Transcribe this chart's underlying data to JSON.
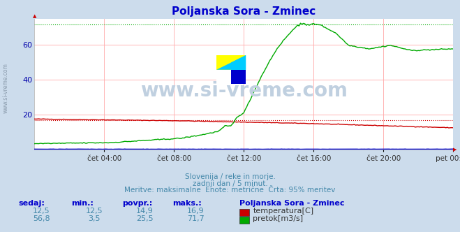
{
  "title": "Poljanska Sora - Zminec",
  "title_color": "#0000cc",
  "bg_color": "#ccdcec",
  "plot_bg_color": "#ffffff",
  "grid_color": "#ffaaaa",
  "x_labels": [
    "čet 04:00",
    "čet 08:00",
    "čet 12:00",
    "čet 16:00",
    "čet 20:00",
    "pet 00:00"
  ],
  "y_ticks": [
    20,
    40,
    60
  ],
  "y_min": 0,
  "y_max": 75,
  "temp_color": "#cc0000",
  "flow_color": "#00aa00",
  "level_color": "#0000cc",
  "temp_dashed_val": 16.9,
  "flow_dashed_val": 71.7,
  "watermark": "www.si-vreme.com",
  "watermark_color": "#c0d0e0",
  "side_watermark_color": "#8899aa",
  "subtitle1": "Slovenija / reke in morje.",
  "subtitle2": "zadnji dan / 5 minut.",
  "subtitle3": "Meritve: maksimalne  Enote: metrične  Črta: 95% meritev",
  "subtitle_color": "#4488aa",
  "footer_label_color": "#0000cc",
  "footer_headers": [
    "sedaj:",
    "min.:",
    "povpr.:",
    "maks.:"
  ],
  "temp_stats": [
    "12,5",
    "12,5",
    "14,9",
    "16,9"
  ],
  "flow_stats": [
    "56,8",
    "3,5",
    "25,5",
    "71,7"
  ],
  "legend_title": "Poljanska Sora - Zminec",
  "legend_temp": "temperatura[C]",
  "legend_flow": "pretok[m3/s]",
  "n_points": 289
}
